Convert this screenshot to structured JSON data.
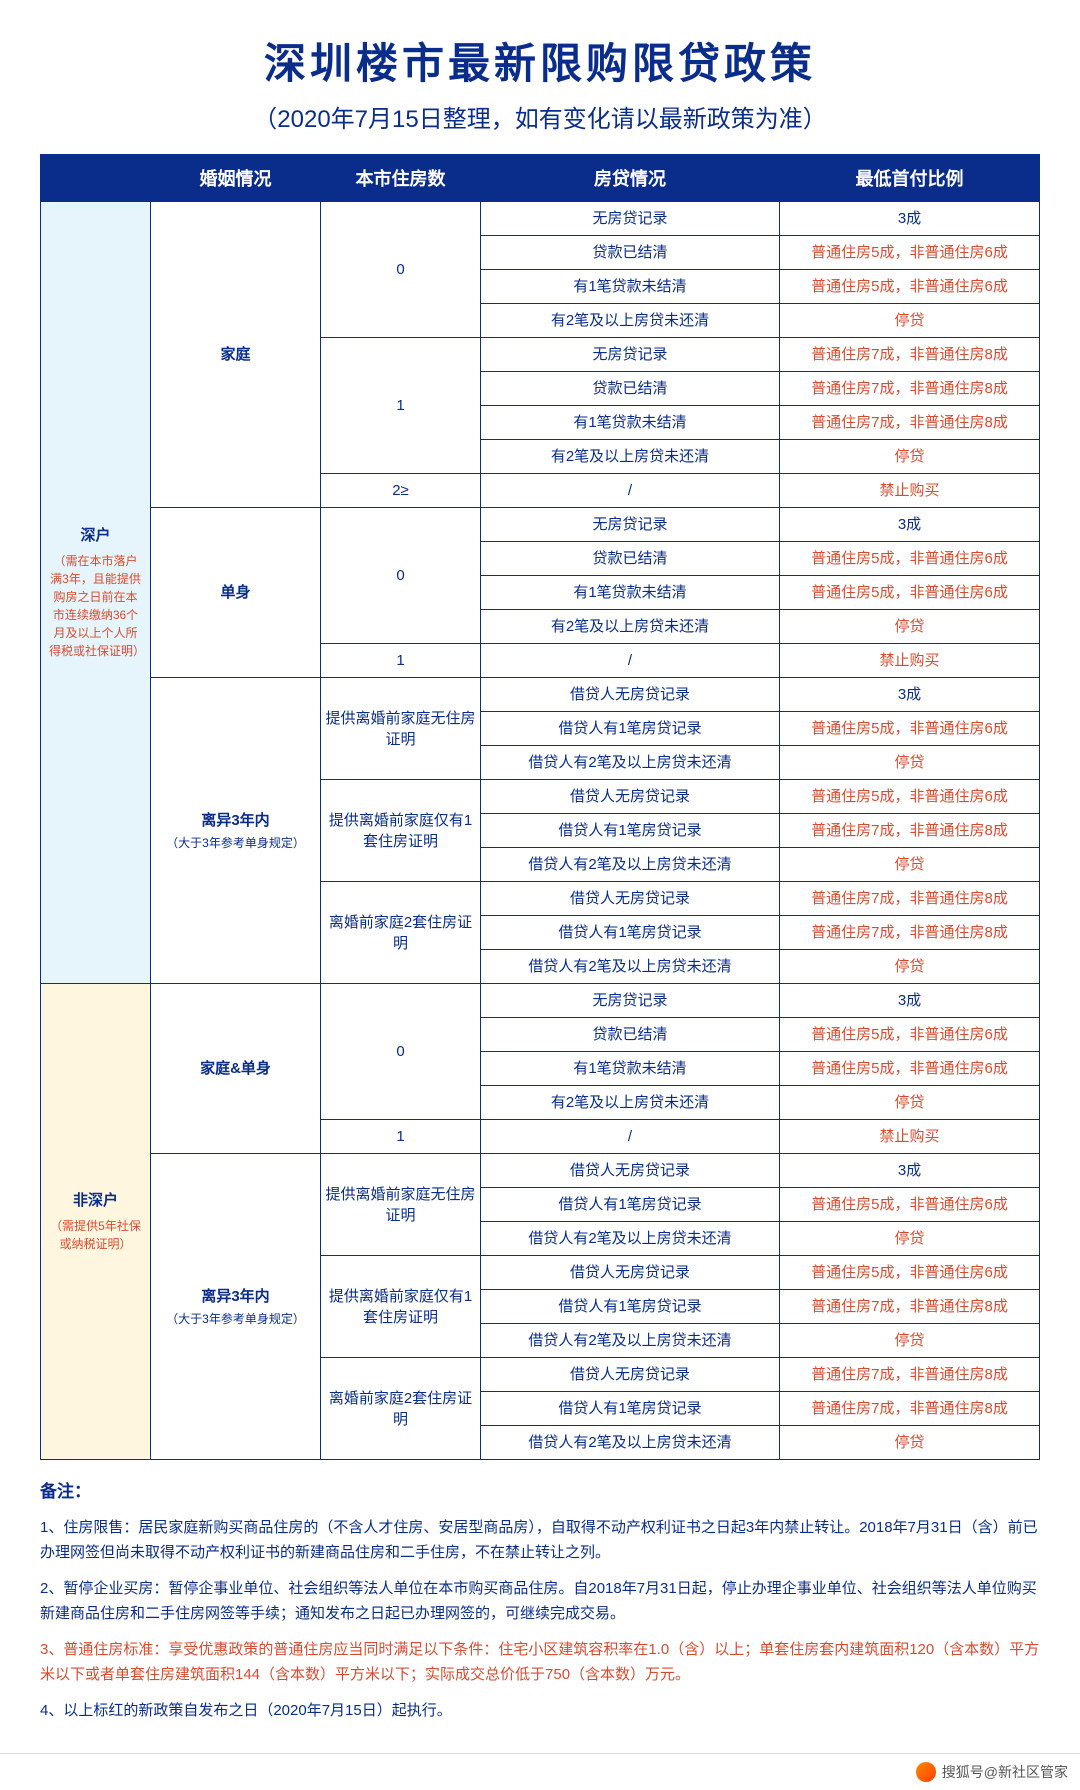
{
  "title": "深圳楼市最新限购限贷政策",
  "subtitle": "（2020年7月15日整理，如有变化请以最新政策为准）",
  "headers": [
    "",
    "婚姻情况",
    "本市住房数",
    "房贷情况",
    "最低首付比例"
  ],
  "hukou": {
    "shenzhen": {
      "label": "深户",
      "note": "（需在本市落户满3年，且能提供购房之日前在本市连续缴纳36个月及以上个人所得税或社保证明）"
    },
    "nonshenzhen": {
      "label": "非深户",
      "note": "（需提供5年社保或纳税证明）"
    }
  },
  "marital": {
    "family": "家庭",
    "single": "单身",
    "family_single": "家庭&单身",
    "divorced": "离异3年内",
    "divorced_note": "（大于3年参考单身规定）"
  },
  "house_count": {
    "zero": "0",
    "one": "1",
    "two_plus": "2≥"
  },
  "proof": {
    "none": "提供离婚前家庭无住房证明",
    "one": "提供离婚前家庭仅有1套住房证明",
    "two": "离婚前家庭2套住房证明"
  },
  "loan": {
    "no_record": "无房贷记录",
    "cleared": "贷款已结清",
    "one_open": "有1笔贷款未结清",
    "two_plus_open": "有2笔及以上房贷未还清",
    "slash": "/",
    "b_no_record": "借贷人无房贷记录",
    "b_one_record": "借贷人有1笔房贷记录",
    "b_two_plus_open": "借贷人有2笔及以上房贷未还清"
  },
  "ratio": {
    "thirty": "3成",
    "p5n6": "普通住房5成，非普通住房6成",
    "p7n8": "普通住房7成，非普通住房8成",
    "stop": "停贷",
    "forbid": "禁止购买",
    "slash": "/"
  },
  "notes": {
    "heading": "备注：",
    "n1": "1、住房限售：居民家庭新购买商品住房的（不含人才住房、安居型商品房），自取得不动产权利证书之日起3年内禁止转让。2018年7月31日（含）前已办理网签但尚未取得不动产权利证书的新建商品住房和二手住房，不在禁止转让之列。",
    "n2": "2、暂停企业买房：暂停企事业单位、社会组织等法人单位在本市购买商品住房。自2018年7月31日起，停止办理企事业单位、社会组织等法人单位购买新建商品住房和二手住房网签等手续；通知发布之日起已办理网签的，可继续完成交易。",
    "n3": "3、普通住房标准：享受优惠政策的普通住房应当同时满足以下条件：住宅小区建筑容积率在1.0（含）以上；单套住房套内建筑面积120（含本数）平方米以下或者单套住房建筑面积144（含本数）平方米以下；实际成交总价低于750（含本数）万元。",
    "n4": "4、以上标红的新政策自发布之日（2020年7月15日）起执行。"
  },
  "footer": "搜狐号@新社区管家"
}
